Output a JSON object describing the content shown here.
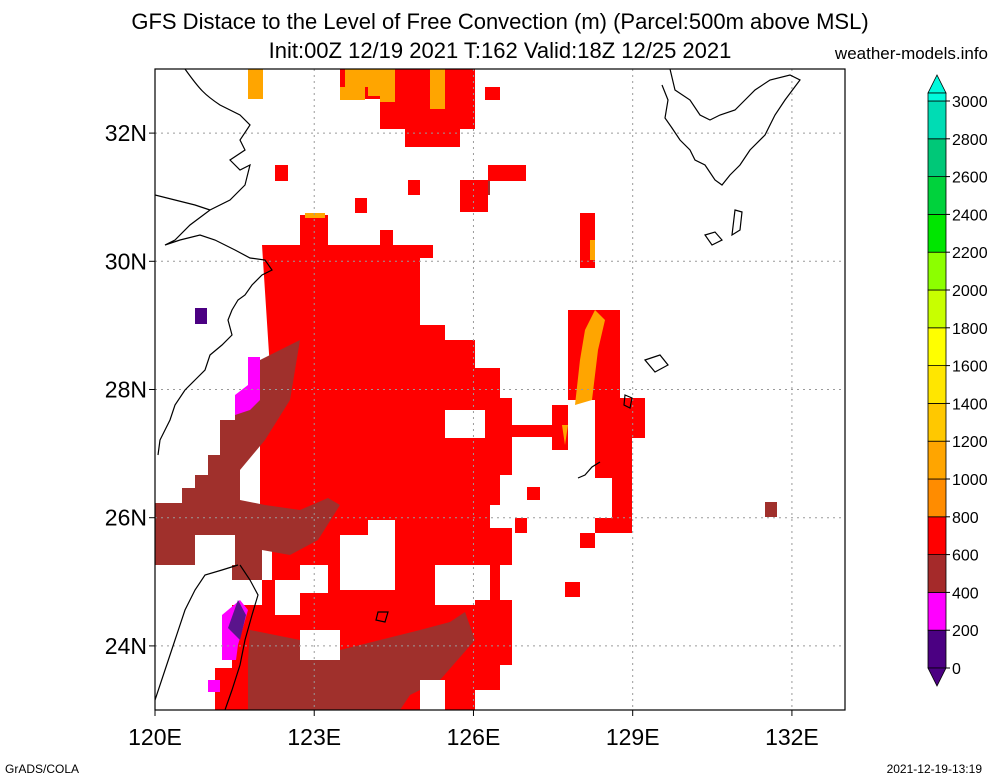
{
  "title": "GFS Distace to the Level of Free Convection (m) (Parcel:500m above MSL)",
  "subtitle": "Init:00Z 12/19 2021 T:162 Valid:18Z 12/25 2021",
  "site": "weather-models.info",
  "footer_left": "GrADS/COLA",
  "footer_right": "2021-12-19-13:19",
  "map": {
    "lon_range": [
      120,
      133
    ],
    "lat_range": [
      23,
      33
    ],
    "x_ticks": [
      "120E",
      "123E",
      "126E",
      "129E",
      "132E"
    ],
    "y_ticks": [
      "24N",
      "26N",
      "28N",
      "30N",
      "32N"
    ],
    "grid": true
  },
  "colorbar": {
    "labels": [
      "0",
      "200",
      "400",
      "600",
      "800",
      "1000",
      "1200",
      "1400",
      "1600",
      "1800",
      "2000",
      "2200",
      "2400",
      "2600",
      "2800",
      "3000"
    ],
    "colors": [
      "#4b0082",
      "#ff00ff",
      "#a52a2a",
      "#ff0000",
      "#ff8c00",
      "#ffa500",
      "#ffc800",
      "#ffe600",
      "#ffff00",
      "#c8ff00",
      "#8cff00",
      "#00e600",
      "#00d23c",
      "#00c878",
      "#00dcb4",
      "#00fadc"
    ]
  }
}
